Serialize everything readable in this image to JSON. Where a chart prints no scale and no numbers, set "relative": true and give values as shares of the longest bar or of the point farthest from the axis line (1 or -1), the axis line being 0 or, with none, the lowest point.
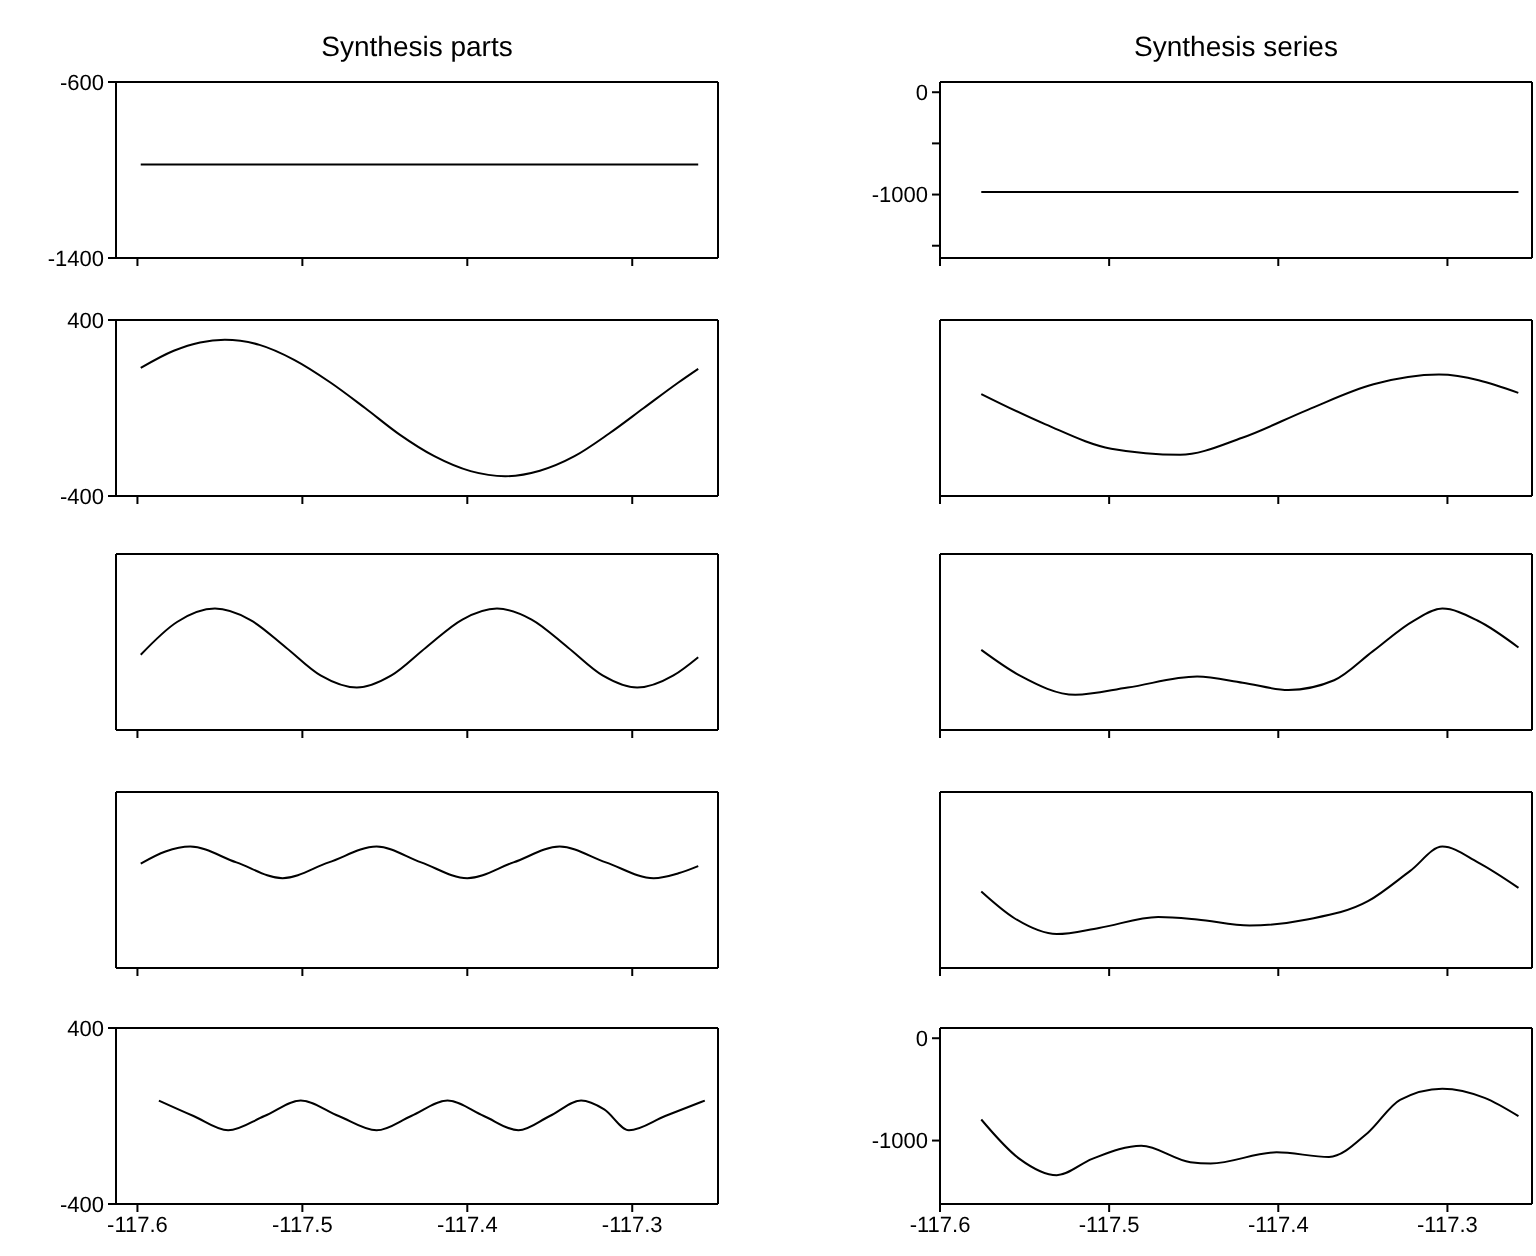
{
  "chart_data": [
    {
      "type": "line",
      "title": "Synthesis parts",
      "x": [
        -117.598,
        -117.26
      ],
      "values": [
        -975,
        -975
      ],
      "color": "#000000",
      "xlim": [
        -117.613,
        -117.248
      ],
      "xticks": [
        -117.6,
        -117.5,
        -117.4,
        -117.3
      ],
      "ylim": [
        -1400,
        -600
      ],
      "yticks": [
        -1400,
        -600
      ],
      "tick_labels": "y"
    },
    {
      "type": "line",
      "title": "Synthesis series",
      "x": [
        -117.5756,
        -117.258
      ],
      "values": [
        -975,
        -975
      ],
      "color": "#000000",
      "xlim": [
        -117.6,
        -117.25
      ],
      "xticks": [
        -117.6,
        -117.5,
        -117.4,
        -117.3
      ],
      "ylim": [
        -1620,
        100
      ],
      "yticks": [
        0,
        {
          "value": -500,
          "label": null
        },
        -1000,
        {
          "value": -1500,
          "label": null
        }
      ],
      "tick_labels": "y"
    },
    {
      "type": "line",
      "x": [
        -117.598,
        -117.578,
        -117.562,
        -117.547,
        -117.526,
        -117.505,
        -117.483,
        -117.462,
        -117.441,
        -117.42,
        -117.398,
        -117.377,
        -117.356,
        -117.335,
        -117.314,
        -117.293,
        -117.272,
        -117.26
      ],
      "values": [
        182,
        260,
        298,
        310,
        287,
        219,
        116,
        0,
        -121,
        -219,
        -287,
        -310,
        -285,
        -219,
        -116,
        0,
        116,
        178
      ],
      "color": "#000000",
      "xlim": [
        -117.613,
        -117.248
      ],
      "xticks": [
        -117.6,
        -117.5,
        -117.4,
        -117.3
      ],
      "ylim": [
        -400,
        400
      ],
      "yticks": [
        -400,
        400
      ],
      "tick_labels": "y"
    },
    {
      "type": "line",
      "x": [
        -117.5756,
        -117.5376,
        -117.4988,
        -117.4581,
        -117.4213,
        -117.3826,
        -117.3437,
        -117.305,
        -117.2581
      ],
      "values": [
        0.84,
        0.59,
        0.39,
        0.34,
        0.48,
        0.71,
        0.92,
        1,
        0.85
      ],
      "relative": true,
      "color": "#000000",
      "xlim": [
        -117.6,
        -117.25
      ],
      "xticks": [
        -117.6,
        -117.5,
        -117.4,
        -117.3
      ],
      "tick_labels": false
    },
    {
      "type": "line",
      "x": [
        -117.598,
        -117.576,
        -117.553,
        -117.532,
        -117.51,
        -117.489,
        -117.467,
        -117.446,
        -117.425,
        -117.403,
        -117.382,
        -117.361,
        -117.339,
        -117.318,
        -117.297,
        -117.275,
        -117.26
      ],
      "values": [
        0.62,
        0.89,
        1,
        0.91,
        0.68,
        0.45,
        0.35,
        0.45,
        0.68,
        0.91,
        1,
        0.91,
        0.68,
        0.45,
        0.35,
        0.45,
        0.6
      ],
      "relative": true,
      "color": "#000000",
      "xlim": [
        -117.613,
        -117.248
      ],
      "xticks": [
        -117.6,
        -117.5,
        -117.4,
        -117.3
      ],
      "tick_labels": false
    },
    {
      "type": "line",
      "x": [
        -117.5756,
        -117.553,
        -117.52,
        -117.489,
        -117.448,
        -117.421,
        -117.394,
        -117.367,
        -117.344,
        -117.32,
        -117.303,
        -117.282,
        -117.258
      ],
      "values": [
        0.66,
        0.45,
        0.29,
        0.35,
        0.44,
        0.39,
        0.33,
        0.41,
        0.65,
        0.9,
        1,
        0.9,
        0.68
      ],
      "relative": true,
      "color": "#000000",
      "xlim": [
        -117.6,
        -117.25
      ],
      "xticks": [
        -117.6,
        -117.5,
        -117.4,
        -117.3
      ],
      "tick_labels": false
    },
    {
      "type": "line",
      "x": [
        -117.598,
        -117.583,
        -117.568,
        -117.54,
        -117.512,
        -117.484,
        -117.455,
        -117.428,
        -117.4,
        -117.372,
        -117.344,
        -117.316,
        -117.287,
        -117.272,
        -117.26
      ],
      "values": [
        0.86,
        0.96,
        1,
        0.87,
        0.74,
        0.87,
        1,
        0.87,
        0.74,
        0.87,
        1,
        0.87,
        0.74,
        0.78,
        0.84
      ],
      "relative": true,
      "color": "#000000",
      "xlim": [
        -117.613,
        -117.248
      ],
      "xticks": [
        -117.6,
        -117.5,
        -117.4,
        -117.3
      ],
      "tick_labels": false
    },
    {
      "type": "line",
      "x": [
        -117.5756,
        -117.556,
        -117.531,
        -117.506,
        -117.471,
        -117.448,
        -117.417,
        -117.383,
        -117.347,
        -117.322,
        -117.303,
        -117.282,
        -117.258
      ],
      "values": [
        0.63,
        0.41,
        0.28,
        0.33,
        0.42,
        0.4,
        0.35,
        0.4,
        0.55,
        0.8,
        1,
        0.87,
        0.66
      ],
      "relative": true,
      "color": "#000000",
      "xlim": [
        -117.6,
        -117.25
      ],
      "xticks": [
        -117.6,
        -117.5,
        -117.4,
        -117.3
      ],
      "tick_labels": false
    },
    {
      "type": "line",
      "x": [
        -117.587,
        -117.566,
        -117.545,
        -117.523,
        -117.501,
        -117.478,
        -117.455,
        -117.434,
        -117.412,
        -117.39,
        -117.369,
        -117.35,
        -117.331,
        -117.317,
        -117.302,
        -117.28,
        -117.256
      ],
      "values": [
        70,
        0,
        -65,
        0,
        70,
        0,
        -65,
        0,
        70,
        0,
        -65,
        0,
        70,
        30,
        -65,
        0,
        70
      ],
      "color": "#000000",
      "xlim": [
        -117.613,
        -117.248
      ],
      "xticks": [
        -117.6,
        -117.5,
        -117.4,
        -117.3
      ],
      "ylim": [
        -400,
        400
      ],
      "yticks": [
        -400,
        400
      ]
    },
    {
      "type": "line",
      "x": [
        -117.5756,
        -117.553,
        -117.531,
        -117.51,
        -117.481,
        -117.452,
        -117.44,
        -117.401,
        -117.37,
        -117.347,
        -117.328,
        -117.303,
        -117.278,
        -117.258
      ],
      "values": [
        -794,
        -1179,
        -1339,
        -1179,
        -1051,
        -1211,
        -1224,
        -1115,
        -1160,
        -923,
        -602,
        -493,
        -583,
        -762
      ],
      "color": "#000000",
      "xlim": [
        -117.6,
        -117.25
      ],
      "xticks": [
        -117.6,
        -117.5,
        -117.4,
        -117.3
      ],
      "ylim": [
        -1620,
        100
      ],
      "yticks": [
        0,
        -1000
      ]
    }
  ]
}
